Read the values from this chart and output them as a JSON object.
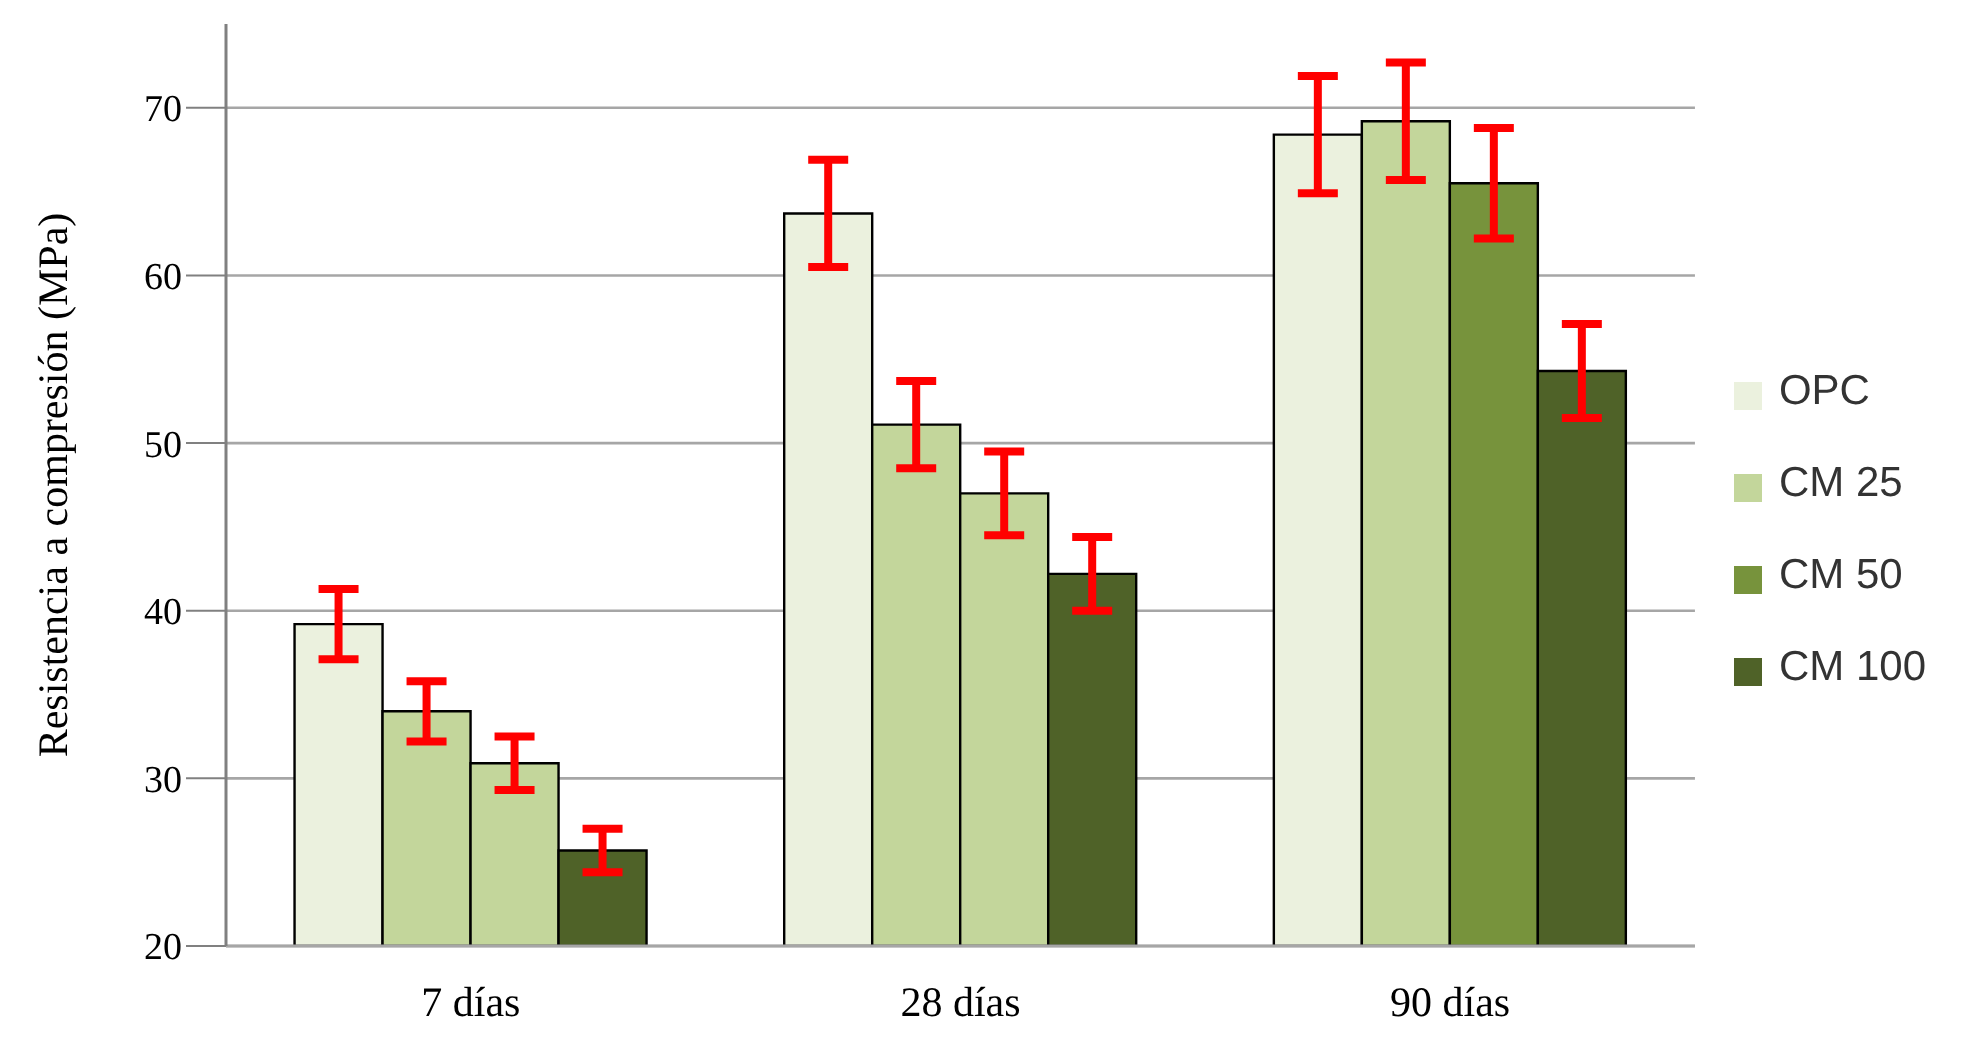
{
  "chart_data": {
    "type": "bar",
    "ylabel": "Resistencia a compresión (MPa)",
    "categories": [
      "7 días",
      "28 días",
      "90 días"
    ],
    "series": [
      {
        "name": "OPC",
        "color": "#ebf1de",
        "values": [
          39.2,
          63.7,
          68.4
        ],
        "errors": [
          2.1,
          3.2,
          3.5
        ]
      },
      {
        "name": "CM 25",
        "color": "#c3d69b",
        "values": [
          34.0,
          51.1,
          69.2
        ],
        "errors": [
          1.8,
          2.6,
          3.5
        ]
      },
      {
        "name": "CM 50",
        "color": "#77933c",
        "colors": [
          "#c3d69b",
          "#c3d69b",
          "#77933c"
        ],
        "values": [
          30.9,
          47.0,
          65.5
        ],
        "errors": [
          1.6,
          2.5,
          3.3
        ]
      },
      {
        "name": "CM 100",
        "color": "#4f6228",
        "values": [
          25.7,
          42.2,
          54.3
        ],
        "errors": [
          1.3,
          2.2,
          2.8
        ]
      }
    ],
    "ylim": [
      20,
      75
    ],
    "yticks": [
      20,
      30,
      40,
      50,
      60,
      70
    ],
    "grid": "y",
    "legend": "right"
  }
}
